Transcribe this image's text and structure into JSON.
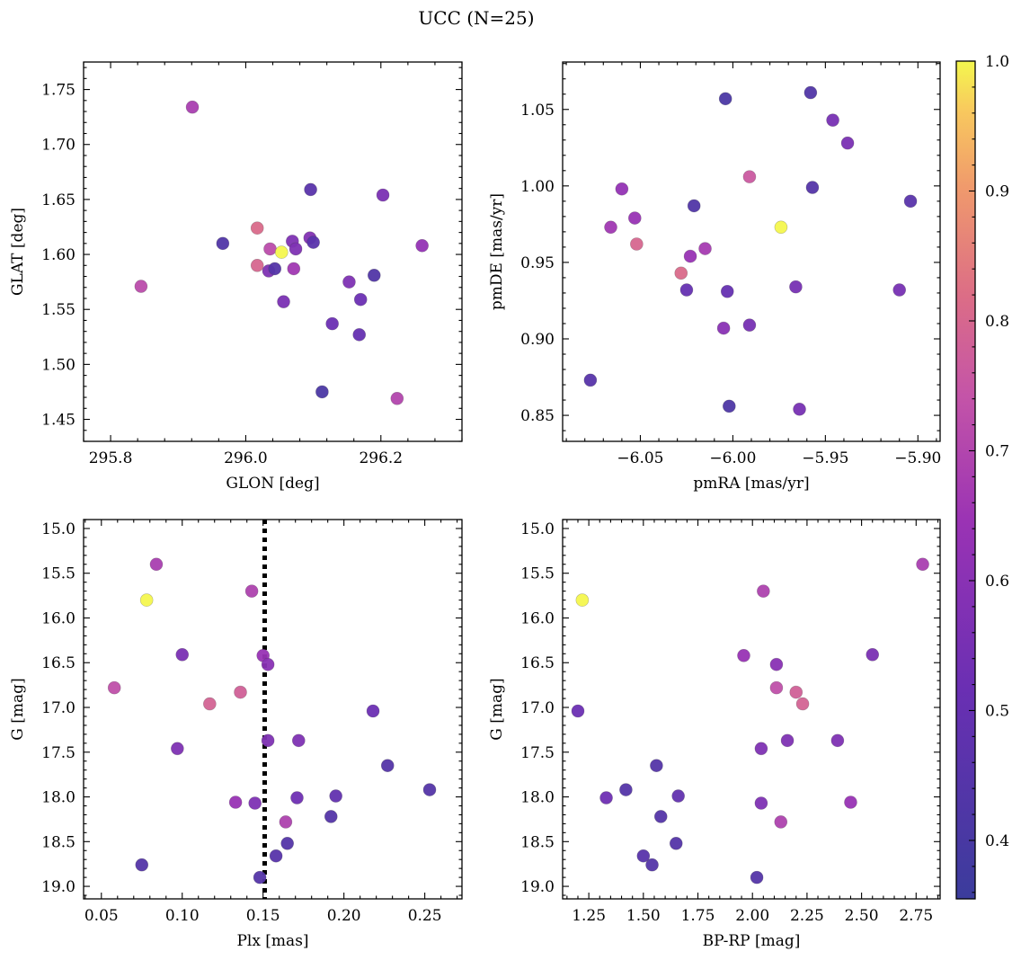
{
  "figure": {
    "title": "UCC (N=25)"
  },
  "colorbar": {
    "min": 0.355,
    "max": 1.0,
    "ticks": [
      0.4,
      0.5,
      0.6,
      0.7,
      0.8,
      0.9,
      1.0
    ],
    "tick_labels": [
      "0.4",
      "0.5",
      "0.6",
      "0.7",
      "0.8",
      "0.9",
      "1.0"
    ],
    "colormap": "plasma"
  },
  "chart_data": [
    {
      "type": "scatter",
      "xlabel": "GLON [deg]",
      "ylabel": "GLAT [deg]",
      "xlim": [
        295.76,
        296.32
      ],
      "ylim": [
        1.43,
        1.775
      ],
      "xticks": [
        295.8,
        296.0,
        296.2
      ],
      "xtick_labels": [
        "295.8",
        "296.0",
        "296.2"
      ],
      "yticks": [
        1.45,
        1.5,
        1.55,
        1.6,
        1.65,
        1.7,
        1.75
      ],
      "ytick_labels": [
        "1.45",
        "1.50",
        "1.55",
        "1.60",
        "1.65",
        "1.70",
        "1.75"
      ],
      "points": [
        {
          "x": 295.921,
          "y": 1.734,
          "c": 0.68
        },
        {
          "x": 295.845,
          "y": 1.571,
          "c": 0.72
        },
        {
          "x": 295.966,
          "y": 1.61,
          "c": 0.43
        },
        {
          "x": 296.017,
          "y": 1.624,
          "c": 0.81
        },
        {
          "x": 296.017,
          "y": 1.59,
          "c": 0.8
        },
        {
          "x": 296.036,
          "y": 1.605,
          "c": 0.72
        },
        {
          "x": 296.034,
          "y": 1.585,
          "c": 0.57
        },
        {
          "x": 296.043,
          "y": 1.587,
          "c": 0.44
        },
        {
          "x": 296.053,
          "y": 1.602,
          "c": 1.0
        },
        {
          "x": 296.056,
          "y": 1.557,
          "c": 0.56
        },
        {
          "x": 296.069,
          "y": 1.612,
          "c": 0.57
        },
        {
          "x": 296.071,
          "y": 1.587,
          "c": 0.66
        },
        {
          "x": 296.074,
          "y": 1.605,
          "c": 0.57
        },
        {
          "x": 296.096,
          "y": 1.659,
          "c": 0.46
        },
        {
          "x": 296.095,
          "y": 1.615,
          "c": 0.58
        },
        {
          "x": 296.1,
          "y": 1.611,
          "c": 0.46
        },
        {
          "x": 296.113,
          "y": 1.475,
          "c": 0.41
        },
        {
          "x": 296.128,
          "y": 1.537,
          "c": 0.52
        },
        {
          "x": 296.153,
          "y": 1.575,
          "c": 0.57
        },
        {
          "x": 296.168,
          "y": 1.527,
          "c": 0.5
        },
        {
          "x": 296.17,
          "y": 1.559,
          "c": 0.52
        },
        {
          "x": 296.19,
          "y": 1.581,
          "c": 0.43
        },
        {
          "x": 296.203,
          "y": 1.654,
          "c": 0.56
        },
        {
          "x": 296.224,
          "y": 1.469,
          "c": 0.7
        },
        {
          "x": 296.261,
          "y": 1.608,
          "c": 0.63
        }
      ]
    },
    {
      "type": "scatter",
      "xlabel": "pmRA [mas/yr]",
      "ylabel": "pmDE [mas/yr]",
      "xlim": [
        -6.092,
        -5.888
      ],
      "ylim": [
        0.833,
        1.081
      ],
      "xticks": [
        -6.05,
        -6.0,
        -5.95,
        -5.9
      ],
      "xtick_labels": [
        "−6.05",
        "−6.00",
        "−5.95",
        "−5.90"
      ],
      "yticks": [
        0.85,
        0.9,
        0.95,
        1.0,
        1.05
      ],
      "ytick_labels": [
        "0.85",
        "0.90",
        "0.95",
        "1.00",
        "1.05"
      ],
      "points": [
        {
          "x": -6.004,
          "y": 1.057,
          "c": 0.41
        },
        {
          "x": -5.958,
          "y": 1.061,
          "c": 0.43
        },
        {
          "x": -5.946,
          "y": 1.043,
          "c": 0.55
        },
        {
          "x": -5.938,
          "y": 1.028,
          "c": 0.56
        },
        {
          "x": -6.06,
          "y": 0.998,
          "c": 0.63
        },
        {
          "x": -5.991,
          "y": 1.006,
          "c": 0.76
        },
        {
          "x": -5.957,
          "y": 0.999,
          "c": 0.44
        },
        {
          "x": -5.904,
          "y": 0.99,
          "c": 0.46
        },
        {
          "x": -6.021,
          "y": 0.987,
          "c": 0.43
        },
        {
          "x": -6.066,
          "y": 0.973,
          "c": 0.66
        },
        {
          "x": -6.053,
          "y": 0.979,
          "c": 0.64
        },
        {
          "x": -5.974,
          "y": 0.973,
          "c": 1.0
        },
        {
          "x": -6.052,
          "y": 0.962,
          "c": 0.8
        },
        {
          "x": -6.015,
          "y": 0.959,
          "c": 0.67
        },
        {
          "x": -6.023,
          "y": 0.954,
          "c": 0.64
        },
        {
          "x": -6.028,
          "y": 0.943,
          "c": 0.81
        },
        {
          "x": -6.025,
          "y": 0.932,
          "c": 0.5
        },
        {
          "x": -6.003,
          "y": 0.931,
          "c": 0.5
        },
        {
          "x": -5.966,
          "y": 0.934,
          "c": 0.55
        },
        {
          "x": -5.91,
          "y": 0.932,
          "c": 0.55
        },
        {
          "x": -6.005,
          "y": 0.907,
          "c": 0.6
        },
        {
          "x": -5.991,
          "y": 0.909,
          "c": 0.55
        },
        {
          "x": -6.077,
          "y": 0.873,
          "c": 0.45
        },
        {
          "x": -6.002,
          "y": 0.856,
          "c": 0.42
        },
        {
          "x": -5.964,
          "y": 0.854,
          "c": 0.55
        }
      ]
    },
    {
      "type": "scatter",
      "xlabel": "Plx [mas]",
      "ylabel": "G [mag]",
      "xlim": [
        0.039,
        0.273
      ],
      "ylim": [
        19.14,
        14.9
      ],
      "y_inverted": true,
      "xticks": [
        0.05,
        0.1,
        0.15,
        0.2,
        0.25
      ],
      "xtick_labels": [
        "0.05",
        "0.10",
        "0.15",
        "0.20",
        "0.25"
      ],
      "yticks": [
        15.0,
        15.5,
        16.0,
        16.5,
        17.0,
        17.5,
        18.0,
        18.5,
        19.0
      ],
      "ytick_labels": [
        "15.0",
        "15.5",
        "16.0",
        "16.5",
        "17.0",
        "17.5",
        "18.0",
        "18.5",
        "19.0"
      ],
      "vline": {
        "x": 0.151,
        "style": "dotted"
      },
      "points": [
        {
          "x": 0.084,
          "y": 15.4,
          "c": 0.68
        },
        {
          "x": 0.078,
          "y": 15.8,
          "c": 1.0
        },
        {
          "x": 0.143,
          "y": 15.7,
          "c": 0.69
        },
        {
          "x": 0.1,
          "y": 16.41,
          "c": 0.56
        },
        {
          "x": 0.15,
          "y": 16.42,
          "c": 0.64
        },
        {
          "x": 0.153,
          "y": 16.52,
          "c": 0.6
        },
        {
          "x": 0.058,
          "y": 16.78,
          "c": 0.73
        },
        {
          "x": 0.136,
          "y": 16.83,
          "c": 0.78
        },
        {
          "x": 0.117,
          "y": 16.96,
          "c": 0.79
        },
        {
          "x": 0.218,
          "y": 17.04,
          "c": 0.52
        },
        {
          "x": 0.097,
          "y": 17.46,
          "c": 0.57
        },
        {
          "x": 0.153,
          "y": 17.37,
          "c": 0.57
        },
        {
          "x": 0.172,
          "y": 17.37,
          "c": 0.57
        },
        {
          "x": 0.227,
          "y": 17.65,
          "c": 0.44
        },
        {
          "x": 0.253,
          "y": 17.92,
          "c": 0.44
        },
        {
          "x": 0.171,
          "y": 18.01,
          "c": 0.53
        },
        {
          "x": 0.195,
          "y": 17.99,
          "c": 0.49
        },
        {
          "x": 0.133,
          "y": 18.06,
          "c": 0.64
        },
        {
          "x": 0.145,
          "y": 18.07,
          "c": 0.57
        },
        {
          "x": 0.192,
          "y": 18.22,
          "c": 0.44
        },
        {
          "x": 0.164,
          "y": 18.28,
          "c": 0.69
        },
        {
          "x": 0.165,
          "y": 18.52,
          "c": 0.44
        },
        {
          "x": 0.158,
          "y": 18.66,
          "c": 0.45
        },
        {
          "x": 0.148,
          "y": 18.9,
          "c": 0.44
        },
        {
          "x": 0.075,
          "y": 18.76,
          "c": 0.44
        }
      ]
    },
    {
      "type": "scatter",
      "xlabel": "BP-RP [mag]",
      "ylabel": "G [mag]",
      "xlim": [
        1.13,
        2.86
      ],
      "ylim": [
        19.14,
        14.9
      ],
      "y_inverted": true,
      "xticks": [
        1.25,
        1.5,
        1.75,
        2.0,
        2.25,
        2.5,
        2.75
      ],
      "xtick_labels": [
        "1.25",
        "1.50",
        "1.75",
        "2.00",
        "2.25",
        "2.50",
        "2.75"
      ],
      "yticks": [
        15.0,
        15.5,
        16.0,
        16.5,
        17.0,
        17.5,
        18.0,
        18.5,
        19.0
      ],
      "ytick_labels": [
        "15.0",
        "15.5",
        "16.0",
        "16.5",
        "17.0",
        "17.5",
        "18.0",
        "18.5",
        "19.0"
      ],
      "points": [
        {
          "x": 2.78,
          "y": 15.4,
          "c": 0.68
        },
        {
          "x": 1.22,
          "y": 15.8,
          "c": 1.0
        },
        {
          "x": 2.05,
          "y": 15.7,
          "c": 0.69
        },
        {
          "x": 2.55,
          "y": 16.41,
          "c": 0.56
        },
        {
          "x": 1.96,
          "y": 16.42,
          "c": 0.64
        },
        {
          "x": 2.11,
          "y": 16.52,
          "c": 0.6
        },
        {
          "x": 2.11,
          "y": 16.78,
          "c": 0.73
        },
        {
          "x": 2.2,
          "y": 16.83,
          "c": 0.78
        },
        {
          "x": 2.23,
          "y": 16.96,
          "c": 0.79
        },
        {
          "x": 1.2,
          "y": 17.04,
          "c": 0.52
        },
        {
          "x": 2.04,
          "y": 17.46,
          "c": 0.57
        },
        {
          "x": 2.16,
          "y": 17.37,
          "c": 0.57
        },
        {
          "x": 2.39,
          "y": 17.37,
          "c": 0.57
        },
        {
          "x": 1.56,
          "y": 17.65,
          "c": 0.44
        },
        {
          "x": 1.42,
          "y": 17.92,
          "c": 0.44
        },
        {
          "x": 1.33,
          "y": 18.01,
          "c": 0.53
        },
        {
          "x": 1.66,
          "y": 17.99,
          "c": 0.49
        },
        {
          "x": 2.45,
          "y": 18.06,
          "c": 0.64
        },
        {
          "x": 2.04,
          "y": 18.07,
          "c": 0.57
        },
        {
          "x": 1.58,
          "y": 18.22,
          "c": 0.44
        },
        {
          "x": 2.13,
          "y": 18.28,
          "c": 0.69
        },
        {
          "x": 1.65,
          "y": 18.52,
          "c": 0.44
        },
        {
          "x": 1.5,
          "y": 18.66,
          "c": 0.45
        },
        {
          "x": 2.02,
          "y": 18.9,
          "c": 0.44
        },
        {
          "x": 1.54,
          "y": 18.76,
          "c": 0.44
        }
      ]
    }
  ]
}
